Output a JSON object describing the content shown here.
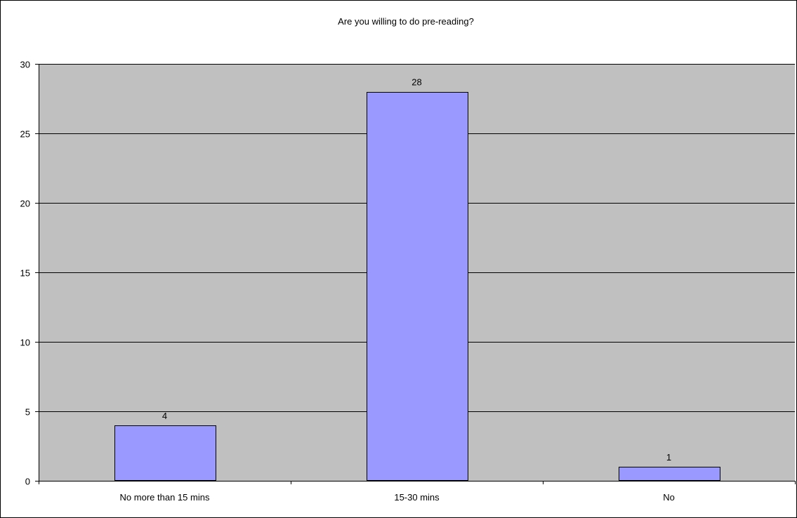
{
  "chart_data": {
    "type": "bar",
    "title": "Are you willing to do pre-reading?",
    "categories": [
      "No more than 15 mins",
      "15-30 mins",
      "No"
    ],
    "values": [
      4,
      28,
      1
    ],
    "data_labels": [
      "4",
      "28",
      "1"
    ],
    "ylim": [
      0,
      30
    ],
    "yticks": [
      0,
      5,
      10,
      15,
      20,
      25,
      30
    ],
    "ytick_labels": [
      "0",
      "5",
      "10",
      "15",
      "20",
      "25",
      "30"
    ],
    "grid": true,
    "legend": "none",
    "colors": {
      "bar_fill": "#9999ff",
      "bar_stroke": "#000000",
      "plot_background": "#c0c0c0",
      "gridline": "#000000",
      "page_background": "#ffffff"
    }
  }
}
